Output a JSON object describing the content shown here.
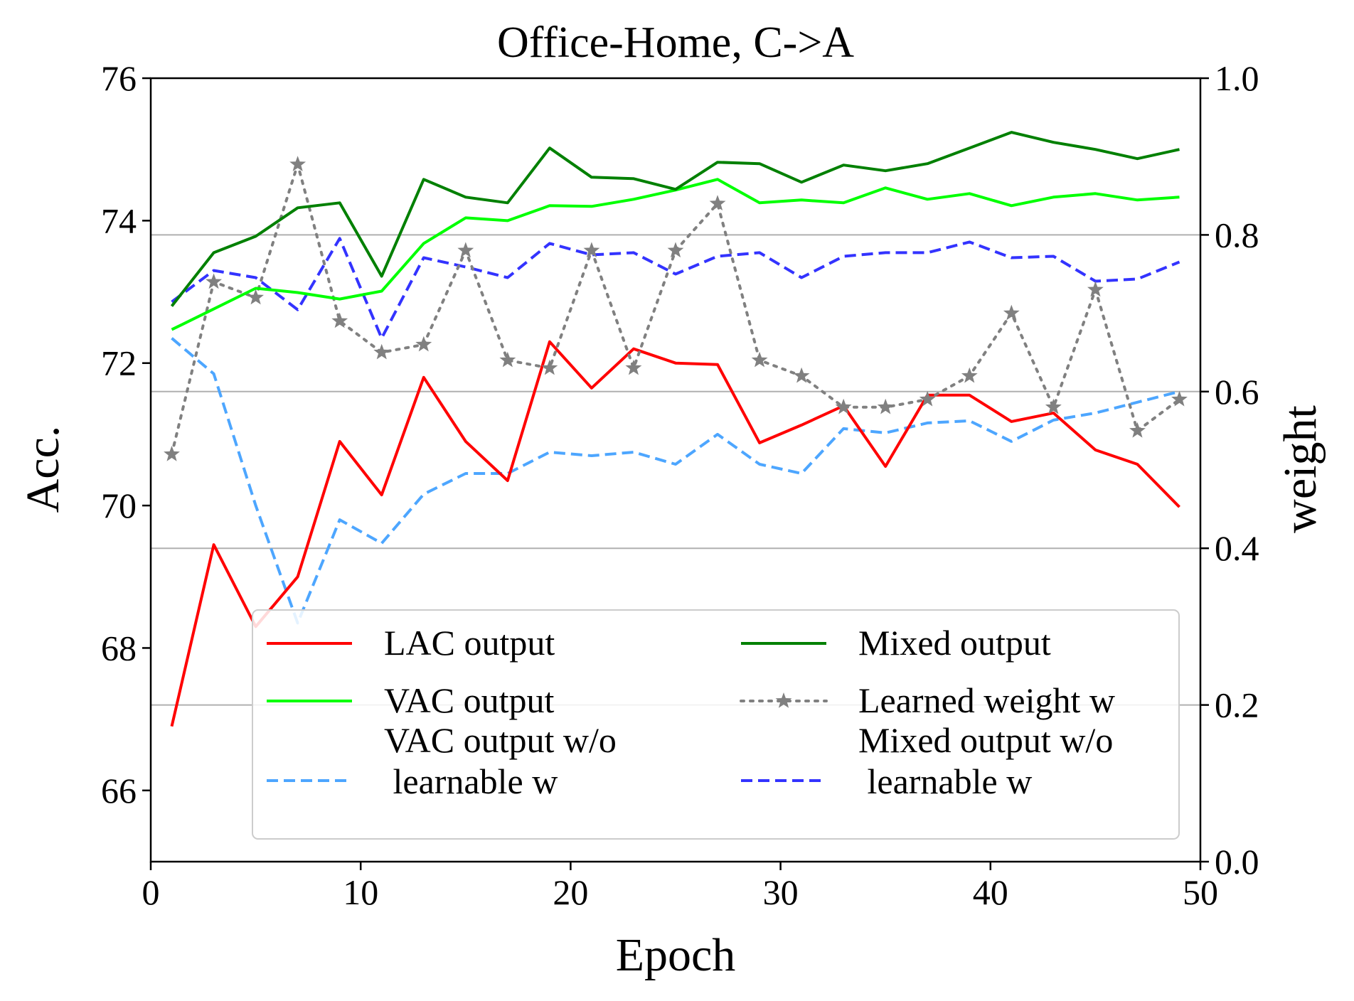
{
  "chart_data": {
    "type": "line",
    "title": "Office-Home, C->A",
    "xlabel": "Epoch",
    "ylabel": "Acc.",
    "y2label": "weight",
    "xlim": [
      0,
      50
    ],
    "ylim": [
      65,
      76
    ],
    "y2lim": [
      0.0,
      1.0
    ],
    "xticks": [
      0,
      10,
      20,
      30,
      40,
      50
    ],
    "yticks": [
      66,
      68,
      70,
      72,
      74,
      76
    ],
    "y2ticks": [
      0.0,
      0.2,
      0.4,
      0.6,
      0.8,
      1.0
    ],
    "xtick_labels": [
      "0",
      "10",
      "20",
      "30",
      "40",
      "50"
    ],
    "ytick_labels": [
      "66",
      "68",
      "70",
      "72",
      "74",
      "76"
    ],
    "y2tick_labels": [
      "0.0",
      "0.2",
      "0.4",
      "0.6",
      "0.8",
      "1.0"
    ],
    "grid": "horizontal, on right (weight) axis",
    "legend": "lower-center, two columns",
    "x": [
      1,
      3,
      5,
      7,
      9,
      11,
      13,
      15,
      17,
      19,
      21,
      23,
      25,
      27,
      29,
      31,
      33,
      35,
      37,
      39,
      41,
      43,
      45,
      47,
      49
    ],
    "series": [
      {
        "name": "LAC output",
        "axis": "left",
        "style": "solid",
        "color": "#ff0000",
        "values": [
          66.9,
          69.45,
          68.3,
          69.0,
          70.9,
          70.15,
          71.8,
          70.9,
          70.35,
          72.3,
          71.65,
          72.2,
          72.0,
          71.98,
          70.88,
          71.13,
          71.4,
          70.55,
          71.55,
          71.55,
          71.18,
          71.3,
          70.78,
          70.58,
          69.98
        ]
      },
      {
        "name": "Mixed output",
        "axis": "left",
        "style": "solid",
        "color": "#008000",
        "values": [
          72.8,
          73.55,
          73.78,
          74.18,
          74.25,
          73.22,
          74.58,
          74.33,
          74.25,
          75.02,
          74.61,
          74.59,
          74.44,
          74.82,
          74.8,
          74.54,
          74.78,
          74.7,
          74.8,
          75.02,
          75.24,
          75.1,
          75.0,
          74.87,
          75.0
        ]
      },
      {
        "name": "VAC output",
        "axis": "left",
        "style": "solid",
        "color": "#00ff00",
        "values": [
          72.47,
          72.76,
          73.05,
          72.99,
          72.9,
          73.01,
          73.68,
          74.04,
          74.0,
          74.21,
          74.2,
          74.3,
          74.43,
          74.58,
          74.25,
          74.29,
          74.25,
          74.46,
          74.3,
          74.38,
          74.21,
          74.33,
          74.38,
          74.29,
          74.33
        ]
      },
      {
        "name": "Learned weight w",
        "axis": "right",
        "style": "dotted-star",
        "color": "#808080",
        "values": [
          0.52,
          0.74,
          0.72,
          0.89,
          0.69,
          0.65,
          0.66,
          0.78,
          0.64,
          0.63,
          0.78,
          0.63,
          0.78,
          0.84,
          0.64,
          0.62,
          0.58,
          0.58,
          0.59,
          0.62,
          0.7,
          0.58,
          0.73,
          0.55,
          0.59
        ]
      },
      {
        "name": "VAC output w/o\n learnable w",
        "axis": "left",
        "style": "dashed",
        "color": "#4da6ff",
        "values": [
          72.35,
          71.85,
          70.0,
          68.35,
          69.8,
          69.47,
          70.16,
          70.45,
          70.45,
          70.75,
          70.7,
          70.75,
          70.58,
          71.0,
          70.58,
          70.45,
          71.08,
          71.02,
          71.16,
          71.19,
          70.9,
          71.2,
          71.3,
          71.45,
          71.6
        ]
      },
      {
        "name": "Mixed output w/o\n learnable w",
        "axis": "left",
        "style": "dashed",
        "color": "#3333ff",
        "values": [
          72.86,
          73.3,
          73.2,
          72.75,
          73.75,
          72.35,
          73.48,
          73.35,
          73.2,
          73.68,
          73.52,
          73.55,
          73.25,
          73.5,
          73.55,
          73.2,
          73.5,
          73.55,
          73.55,
          73.7,
          73.48,
          73.5,
          73.15,
          73.18,
          73.42
        ]
      }
    ],
    "legend_entries": [
      [
        "LAC output"
      ],
      [
        "Mixed output"
      ],
      [
        "VAC output"
      ],
      [
        "Learned weight w"
      ],
      [
        "VAC output w/o",
        " learnable w"
      ],
      [
        "Mixed output w/o",
        " learnable w"
      ]
    ]
  }
}
